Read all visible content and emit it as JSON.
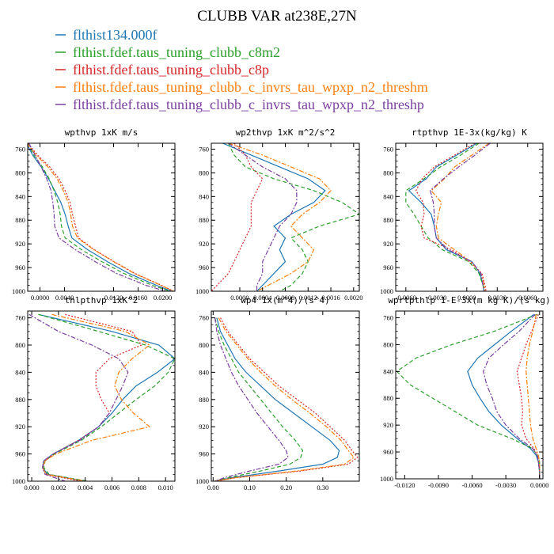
{
  "title": "CLUBB VAR at238E,27N",
  "colors": {
    "blue": "#1f77b4",
    "green": "#2ca02c",
    "red": "#d62728",
    "orange": "#ff7f0e",
    "purple": "#7b3fa0"
  },
  "legend": [
    {
      "label": "flthist134.000f",
      "color": "#1f77b4"
    },
    {
      "label": "flthist.fdef.taus_tuning_clubb_c8m2",
      "color": "#2ca02c"
    },
    {
      "label": "flthist.fdef.taus_tuning_clubb_c8p",
      "color": "#d62728"
    },
    {
      "label": "flthist.fdef.taus_tuning_clubb_c_invrs_tau_wpxp_n2_threshm",
      "color": "#ff7f0e"
    },
    {
      "label": "flthist.fdef.taus_tuning_clubb_c_invrs_tau_wpxp_n2_threshp",
      "color": "#7b3fa0"
    }
  ],
  "chart_data": [
    {
      "type": "line",
      "title": "wpthvp  1xK m/s",
      "xlim": [
        -0.002,
        0.022
      ],
      "ylim": [
        1000,
        750
      ],
      "xticks": [
        0.0,
        0.004,
        0.012,
        0.016,
        0.02
      ],
      "xtick_labels": [
        "0.0000",
        "0.0040",
        "0.0120",
        "0.0160",
        "0.0200"
      ],
      "yticks": [
        760,
        800,
        840,
        880,
        920,
        960,
        1000
      ],
      "y": [
        750,
        770,
        790,
        810,
        830,
        850,
        870,
        890,
        910,
        930,
        950,
        970,
        990,
        1000
      ],
      "series": [
        {
          "color": "#1f77b4",
          "dash": "solid",
          "values": [
            -0.0022,
            -0.0012,
            0.0002,
            0.0014,
            0.0024,
            0.0034,
            0.0041,
            0.0046,
            0.0052,
            0.0078,
            0.011,
            0.0145,
            0.019,
            0.0215
          ]
        },
        {
          "color": "#2ca02c",
          "dash": "dash",
          "values": [
            -0.002,
            -0.001,
            0.0004,
            0.0015,
            0.0023,
            0.0029,
            0.0033,
            0.0035,
            0.0041,
            0.0068,
            0.0101,
            0.0137,
            0.0183,
            0.0212
          ]
        },
        {
          "color": "#d62728",
          "dash": "dot",
          "values": [
            -0.002,
            -0.0004,
            0.0016,
            0.0031,
            0.0041,
            0.0049,
            0.0053,
            0.0058,
            0.0063,
            0.0089,
            0.0121,
            0.0155,
            0.0198,
            0.0218
          ]
        },
        {
          "color": "#ff7f0e",
          "dash": "dashdot",
          "values": [
            -0.0022,
            -0.0006,
            0.0013,
            0.0028,
            0.0038,
            0.0046,
            0.005,
            0.0053,
            0.0061,
            0.0088,
            0.012,
            0.0154,
            0.0197,
            0.0218
          ]
        },
        {
          "color": "#7b3fa0",
          "dash": "dashdot",
          "values": [
            -0.0018,
            -0.0008,
            0.0002,
            0.0011,
            0.0018,
            0.0021,
            0.0023,
            0.0024,
            0.0031,
            0.0058,
            0.009,
            0.0125,
            0.0173,
            0.0205
          ]
        }
      ]
    },
    {
      "type": "line",
      "title": "wp2thvp  1xK m^2/s^2",
      "xlim": [
        -0.0005,
        0.0021
      ],
      "ylim": [
        1000,
        750
      ],
      "xticks": [
        0.0,
        0.0004,
        0.0008,
        0.0012,
        0.0016,
        0.002
      ],
      "xtick_labels": [
        "0.0000",
        "0.0004",
        "0.0008",
        "0.0012",
        "0.0016",
        "0.0020"
      ],
      "yticks": [
        760,
        800,
        840,
        880,
        920,
        960,
        1000
      ],
      "y": [
        750,
        770,
        790,
        810,
        830,
        850,
        870,
        890,
        910,
        930,
        950,
        970,
        990,
        1000
      ],
      "series": [
        {
          "color": "#1f77b4",
          "dash": "solid",
          "values": [
            -0.0003,
            0.0002,
            0.0007,
            0.0012,
            0.0015,
            0.0013,
            0.0009,
            0.0006,
            0.0008,
            0.0007,
            0.0008,
            0.0006,
            0.0004,
            0.0003
          ]
        },
        {
          "color": "#2ca02c",
          "dash": "dash",
          "values": [
            -0.0002,
            -0.0001,
            0.0001,
            0.0006,
            0.0013,
            0.0018,
            0.0021,
            0.0014,
            0.0009,
            0.0011,
            0.0012,
            0.0011,
            0.0009,
            0.0007
          ]
        },
        {
          "color": "#d62728",
          "dash": "dot",
          "values": [
            -0.0001,
            0.0001,
            0.0002,
            0.0004,
            0.0003,
            0.0002,
            0.0002,
            0.0002,
            0.0001,
            0.0,
            -0.0001,
            -0.0002,
            -0.0004,
            -0.0005
          ]
        },
        {
          "color": "#ff7f0e",
          "dash": "dashdot",
          "values": [
            -0.0002,
            0.0004,
            0.0009,
            0.0014,
            0.0016,
            0.0014,
            0.0011,
            0.0009,
            0.0011,
            0.0013,
            0.0012,
            0.0009,
            0.0005,
            0.0003
          ]
        },
        {
          "color": "#7b3fa0",
          "dash": "dashdot",
          "values": [
            -0.0002,
            0.0001,
            0.0004,
            0.0008,
            0.001,
            0.001,
            0.0009,
            0.0007,
            0.0006,
            0.0005,
            0.0004,
            0.0004,
            0.0003,
            0.0003
          ]
        }
      ]
    },
    {
      "type": "line",
      "title": "rtpthvp  1E-3x(kg/kg) K",
      "xlim": [
        -0.007,
        0.0075
      ],
      "ylim": [
        1000,
        750
      ],
      "xticks": [
        -0.006,
        -0.003,
        0.0,
        0.003,
        0.006
      ],
      "xtick_labels": [
        "-0.0060",
        "-0.0030",
        "0.0000",
        "0.0030",
        "0.0060"
      ],
      "yticks": [
        760,
        800,
        840,
        880,
        920,
        960,
        1000
      ],
      "y": [
        750,
        770,
        790,
        810,
        830,
        850,
        870,
        890,
        910,
        930,
        950,
        970,
        990,
        1000
      ],
      "series": [
        {
          "color": "#1f77b4",
          "dash": "solid",
          "values": [
            0.001,
            -0.001,
            -0.003,
            -0.004,
            -0.0057,
            -0.0045,
            -0.0035,
            -0.0032,
            -0.003,
            -0.002,
            0.0005,
            0.0013,
            0.0016,
            0.0017
          ]
        },
        {
          "color": "#2ca02c",
          "dash": "dash",
          "values": [
            0.0012,
            -0.0006,
            -0.0026,
            -0.0042,
            -0.006,
            -0.006,
            -0.0052,
            -0.0045,
            -0.0038,
            -0.0024,
            0.0002,
            0.0012,
            0.0016,
            0.0017
          ]
        },
        {
          "color": "#d62728",
          "dash": "dot",
          "values": [
            0.0008,
            -0.0012,
            -0.0032,
            -0.0044,
            -0.005,
            -0.0043,
            -0.0042,
            -0.0045,
            -0.0042,
            -0.0015,
            0.0003,
            0.0015,
            0.0018,
            0.0019
          ]
        },
        {
          "color": "#ff7f0e",
          "dash": "dashdot",
          "values": [
            0.0022,
            0.0005,
            -0.0012,
            -0.0022,
            -0.0035,
            -0.0025,
            -0.0028,
            -0.003,
            -0.0028,
            -0.0012,
            0.0004,
            0.0014,
            0.0017,
            0.0018
          ]
        },
        {
          "color": "#7b3fa0",
          "dash": "dashdot",
          "values": [
            0.0023,
            0.0008,
            -0.0008,
            -0.0023,
            -0.0036,
            -0.0033,
            -0.0032,
            -0.0032,
            -0.003,
            -0.0018,
            0.0005,
            0.0014,
            0.0016,
            0.0017
          ]
        }
      ]
    },
    {
      "type": "line",
      "title": "thlpthvp  1xK^2",
      "xlim": [
        -0.0003,
        0.0107
      ],
      "ylim": [
        1000,
        750
      ],
      "xticks": [
        0.0,
        0.002,
        0.004,
        0.006,
        0.008,
        0.01
      ],
      "xtick_labels": [
        "0.000",
        "0.002",
        "0.004",
        "0.006",
        "0.008",
        "0.010"
      ],
      "yticks": [
        760,
        800,
        840,
        880,
        920,
        960,
        1000
      ],
      "y": [
        755,
        780,
        800,
        820,
        840,
        860,
        880,
        900,
        920,
        940,
        960,
        970,
        980,
        990,
        1000
      ],
      "series": [
        {
          "color": "#1f77b4",
          "dash": "solid",
          "values": [
            0.0005,
            0.006,
            0.0095,
            0.0107,
            0.0094,
            0.0078,
            0.0068,
            0.006,
            0.005,
            0.0035,
            0.0016,
            0.0009,
            0.0008,
            0.0012,
            0.004
          ]
        },
        {
          "color": "#2ca02c",
          "dash": "dash",
          "values": [
            0.0005,
            0.005,
            0.0085,
            0.0107,
            0.0102,
            0.0092,
            0.0078,
            0.0065,
            0.0052,
            0.0037,
            0.0017,
            0.001,
            0.0009,
            0.0013,
            0.0042
          ]
        },
        {
          "color": "#d62728",
          "dash": "dot",
          "values": [
            0.0025,
            0.0075,
            0.0082,
            0.0058,
            0.0048,
            0.0048,
            0.0052,
            0.0058,
            0.005,
            0.0035,
            0.0016,
            0.001,
            0.0008,
            0.0011,
            0.0036
          ]
        },
        {
          "color": "#ff7f0e",
          "dash": "dashdot",
          "values": [
            0.0015,
            0.007,
            0.0088,
            0.0075,
            0.0065,
            0.0062,
            0.0067,
            0.0076,
            0.0088,
            0.0045,
            0.0018,
            0.001,
            0.0008,
            0.0011,
            0.004
          ]
        },
        {
          "color": "#7b3fa0",
          "dash": "dashdot",
          "values": [
            -0.0002,
            0.002,
            0.0045,
            0.0065,
            0.0072,
            0.0068,
            0.0063,
            0.0058,
            0.005,
            0.0036,
            0.0016,
            0.0009,
            0.0008,
            0.001,
            0.0025
          ]
        }
      ]
    },
    {
      "type": "line",
      "title": "wp4  1x(m^4)/(s^4)",
      "xlim": [
        -0.005,
        0.4
      ],
      "ylim": [
        1000,
        750
      ],
      "xticks": [
        0.0,
        0.1,
        0.2,
        0.3
      ],
      "xtick_labels": [
        "0.00",
        "0.10",
        "0.20",
        "0.30"
      ],
      "yticks": [
        760,
        800,
        840,
        880,
        920,
        960,
        1000
      ],
      "y": [
        760,
        780,
        800,
        820,
        840,
        860,
        880,
        900,
        920,
        940,
        955,
        965,
        975,
        985,
        995,
        1000
      ],
      "series": [
        {
          "color": "#1f77b4",
          "dash": "solid",
          "values": [
            0.01,
            0.02,
            0.04,
            0.06,
            0.09,
            0.13,
            0.17,
            0.22,
            0.27,
            0.32,
            0.345,
            0.34,
            0.3,
            0.18,
            0.05,
            0.005
          ]
        },
        {
          "color": "#2ca02c",
          "dash": "dash",
          "values": [
            0.005,
            0.015,
            0.03,
            0.05,
            0.07,
            0.1,
            0.13,
            0.16,
            0.19,
            0.225,
            0.245,
            0.24,
            0.21,
            0.13,
            0.04,
            0.005
          ]
        },
        {
          "color": "#d62728",
          "dash": "dot",
          "values": [
            0.02,
            0.04,
            0.07,
            0.1,
            0.14,
            0.18,
            0.23,
            0.28,
            0.32,
            0.36,
            0.38,
            0.395,
            0.37,
            0.24,
            0.06,
            0.005
          ]
        },
        {
          "color": "#ff7f0e",
          "dash": "dashdot",
          "values": [
            0.015,
            0.035,
            0.065,
            0.095,
            0.13,
            0.17,
            0.215,
            0.265,
            0.31,
            0.35,
            0.37,
            0.385,
            0.36,
            0.23,
            0.06,
            0.005
          ]
        },
        {
          "color": "#7b3fa0",
          "dash": "dashdot",
          "values": [
            0.005,
            0.01,
            0.02,
            0.035,
            0.05,
            0.07,
            0.095,
            0.12,
            0.15,
            0.18,
            0.2,
            0.205,
            0.18,
            0.1,
            0.03,
            0.005
          ]
        }
      ]
    },
    {
      "type": "line",
      "title": "wprtpthlp  1-E-3x(m kg K)/(s kg)",
      "xlim": [
        -0.0128,
        0.0003
      ],
      "ylim": [
        1000,
        750
      ],
      "xticks": [
        -0.012,
        -0.009,
        -0.006,
        -0.003,
        0.0
      ],
      "xtick_labels": [
        "-0.0120",
        "-0.0090",
        "-0.0060",
        "-0.0030",
        "0.0000"
      ],
      "yticks": [
        760,
        800,
        840,
        880,
        920,
        960,
        1000
      ],
      "y": [
        755,
        780,
        800,
        820,
        840,
        860,
        880,
        900,
        920,
        940,
        955,
        965,
        975,
        990,
        1000
      ],
      "series": [
        {
          "color": "#1f77b4",
          "dash": "solid",
          "values": [
            -0.0005,
            -0.0025,
            -0.004,
            -0.0055,
            -0.0064,
            -0.006,
            -0.0053,
            -0.0045,
            -0.0034,
            -0.002,
            -0.0008,
            -0.0003,
            -0.0001,
            0.0,
            0.0
          ]
        },
        {
          "color": "#2ca02c",
          "dash": "dash",
          "values": [
            -0.0002,
            -0.004,
            -0.0078,
            -0.011,
            -0.0127,
            -0.0115,
            -0.0095,
            -0.0075,
            -0.0055,
            -0.0025,
            -0.0006,
            -0.0002,
            0.0,
            0.0,
            0.0
          ]
        },
        {
          "color": "#d62728",
          "dash": "dot",
          "values": [
            -0.0001,
            -0.0007,
            -0.0012,
            -0.0016,
            -0.002,
            -0.0018,
            -0.0016,
            -0.0015,
            -0.0016,
            -0.0012,
            -0.0005,
            -0.0002,
            -0.0001,
            0.0,
            0.0
          ]
        },
        {
          "color": "#ff7f0e",
          "dash": "dashdot",
          "values": [
            -0.0003,
            -0.0006,
            -0.0009,
            -0.0011,
            -0.0012,
            -0.0011,
            -0.001,
            -0.0009,
            -0.0008,
            -0.0006,
            -0.0003,
            -0.0001,
            0.0,
            0.0,
            0.0
          ]
        },
        {
          "color": "#7b3fa0",
          "dash": "dashdot",
          "values": [
            -0.0004,
            -0.0018,
            -0.0032,
            -0.0045,
            -0.005,
            -0.0047,
            -0.0042,
            -0.0038,
            -0.003,
            -0.0018,
            -0.0006,
            -0.0002,
            -0.0001,
            0.0,
            0.0
          ]
        }
      ]
    }
  ]
}
